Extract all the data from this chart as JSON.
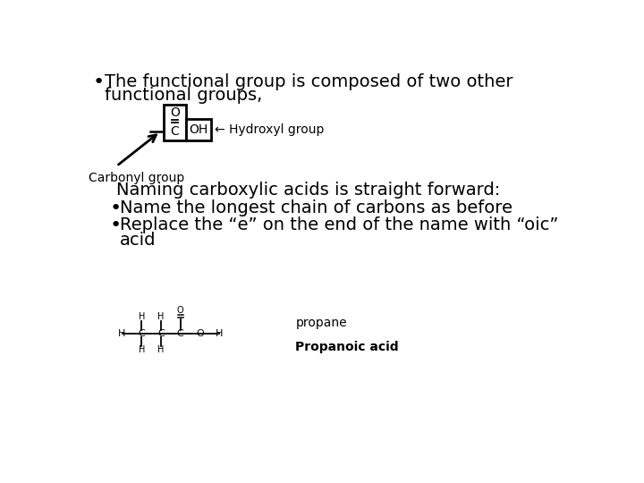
{
  "bg_color": "#ffffff",
  "bullet1_line1": "The functional group is composed of two other",
  "bullet1_line2": "functional groups,",
  "carbonyl_label": "Carbonyl group",
  "hydroxyl_arrow_label": "← Hydroxyl group",
  "naming_heading": "Naming carboxylic acids is straight forward:",
  "bullet2": "Name the longest chain of carbons as before",
  "bullet3a": "Replace the “e” on the end of the name with “oic”",
  "bullet3b": "acid",
  "propane_label": "propane",
  "propanoic_label": "Propanoic acid",
  "font_size_body": 14,
  "font_size_small": 10,
  "font_size_chem": 9,
  "font_size_heading": 14
}
